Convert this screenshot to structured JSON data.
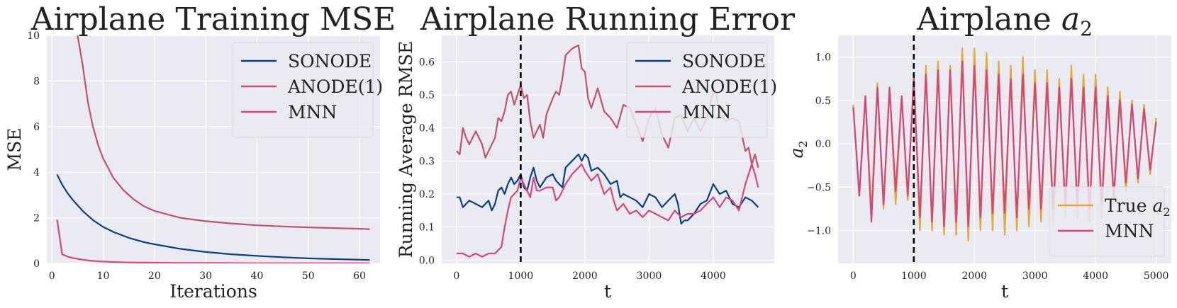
{
  "colors": {
    "background": "#eaeaf2",
    "grid": "#ffffff",
    "sonode": "#0b3f86",
    "anode": "#c3516a",
    "mnn": "#d5467a",
    "true_a2": "#e0a72e",
    "marker": "#000000"
  },
  "chart_data": [
    {
      "type": "line",
      "title": "Airplane Training MSE",
      "xlabel": "Iterations",
      "ylabel": "MSE",
      "xlim": [
        -1,
        64
      ],
      "ylim": [
        0,
        10
      ],
      "xticks": [
        0,
        10,
        20,
        30,
        40,
        50,
        60
      ],
      "yticks": [
        0,
        2,
        4,
        6,
        8,
        10
      ],
      "grid": true,
      "legend": {
        "position": "top-right",
        "entries": [
          "SONODE",
          "ANODE(1)",
          "MNN"
        ]
      },
      "series": [
        {
          "name": "SONODE",
          "x": [
            1,
            2,
            3,
            4,
            5,
            6,
            8,
            10,
            12,
            15,
            18,
            20,
            25,
            30,
            35,
            40,
            45,
            50,
            55,
            60,
            62
          ],
          "values": [
            3.9,
            3.45,
            3.1,
            2.8,
            2.55,
            2.3,
            1.9,
            1.6,
            1.38,
            1.12,
            0.93,
            0.84,
            0.64,
            0.5,
            0.4,
            0.33,
            0.27,
            0.22,
            0.19,
            0.16,
            0.15
          ]
        },
        {
          "name": "ANODE(1)",
          "x": [
            5,
            6,
            7,
            8,
            9,
            10,
            12,
            14,
            16,
            18,
            20,
            25,
            30,
            35,
            40,
            45,
            50,
            55,
            60,
            62
          ],
          "values": [
            10.0,
            8.7,
            7.1,
            6.0,
            5.2,
            4.6,
            3.75,
            3.2,
            2.8,
            2.5,
            2.3,
            2.0,
            1.85,
            1.75,
            1.67,
            1.62,
            1.58,
            1.55,
            1.52,
            1.5
          ]
        },
        {
          "name": "MNN",
          "x": [
            1,
            2,
            3,
            4,
            5,
            6,
            8,
            10,
            12,
            15,
            20,
            25,
            30,
            40,
            50,
            60,
            62
          ],
          "values": [
            1.92,
            0.4,
            0.3,
            0.24,
            0.2,
            0.16,
            0.11,
            0.08,
            0.06,
            0.04,
            0.03,
            0.02,
            0.02,
            0.01,
            0.01,
            0.01,
            0.01
          ]
        }
      ]
    },
    {
      "type": "line",
      "title": "Airplane Running Error",
      "xlabel": "t",
      "ylabel": "Running Average RMSE",
      "xlim": [
        -230,
        4950
      ],
      "ylim": [
        -0.01,
        0.68
      ],
      "xticks": [
        0,
        1000,
        2000,
        3000,
        4000
      ],
      "yticks": [
        0.0,
        0.1,
        0.2,
        0.3,
        0.4,
        0.5,
        0.6
      ],
      "grid": true,
      "vline_x": 1000,
      "legend": {
        "position": "top-right",
        "entries": [
          "SONODE",
          "ANODE(1)",
          "MNN"
        ]
      },
      "series": [
        {
          "name": "SONODE",
          "x": [
            0,
            50,
            100,
            150,
            200,
            300,
            400,
            500,
            550,
            600,
            650,
            700,
            750,
            800,
            850,
            900,
            950,
            1000,
            1050,
            1100,
            1150,
            1200,
            1250,
            1300,
            1400,
            1500,
            1550,
            1600,
            1650,
            1700,
            1800,
            1900,
            1950,
            2000,
            2050,
            2100,
            2200,
            2300,
            2400,
            2500,
            2550,
            2600,
            2700,
            2800,
            2900,
            3000,
            3100,
            3200,
            3300,
            3400,
            3450,
            3500,
            3550,
            3600,
            3700,
            3800,
            3900,
            4000,
            4100,
            4200,
            4300,
            4400,
            4500,
            4600,
            4700
          ],
          "values": [
            0.19,
            0.19,
            0.16,
            0.17,
            0.18,
            0.17,
            0.16,
            0.18,
            0.15,
            0.17,
            0.21,
            0.22,
            0.2,
            0.23,
            0.25,
            0.23,
            0.24,
            0.26,
            0.22,
            0.21,
            0.25,
            0.28,
            0.24,
            0.22,
            0.25,
            0.26,
            0.24,
            0.23,
            0.22,
            0.28,
            0.3,
            0.32,
            0.3,
            0.32,
            0.31,
            0.27,
            0.28,
            0.26,
            0.23,
            0.24,
            0.19,
            0.2,
            0.19,
            0.18,
            0.16,
            0.2,
            0.19,
            0.16,
            0.18,
            0.2,
            0.17,
            0.11,
            0.12,
            0.12,
            0.14,
            0.17,
            0.18,
            0.23,
            0.2,
            0.21,
            0.17,
            0.16,
            0.19,
            0.18,
            0.16
          ]
        },
        {
          "name": "ANODE(1)",
          "x": [
            0,
            50,
            100,
            150,
            200,
            300,
            400,
            450,
            500,
            600,
            650,
            700,
            750,
            800,
            850,
            900,
            950,
            1000,
            1050,
            1100,
            1150,
            1200,
            1300,
            1350,
            1400,
            1500,
            1550,
            1600,
            1650,
            1700,
            1750,
            1800,
            1900,
            1950,
            2000,
            2050,
            2100,
            2200,
            2300,
            2400,
            2500,
            2600,
            2700,
            2800,
            2900,
            3000,
            3100,
            3200,
            3300,
            3400,
            3500,
            3600,
            3700,
            3800,
            3900,
            4000,
            4050,
            4100,
            4200,
            4300,
            4400,
            4500,
            4550,
            4600,
            4650,
            4700
          ],
          "values": [
            0.33,
            0.32,
            0.4,
            0.37,
            0.35,
            0.39,
            0.35,
            0.31,
            0.33,
            0.37,
            0.43,
            0.42,
            0.45,
            0.5,
            0.51,
            0.47,
            0.5,
            0.53,
            0.49,
            0.5,
            0.42,
            0.37,
            0.41,
            0.37,
            0.44,
            0.49,
            0.51,
            0.5,
            0.55,
            0.62,
            0.63,
            0.64,
            0.65,
            0.58,
            0.57,
            0.49,
            0.46,
            0.52,
            0.45,
            0.43,
            0.4,
            0.47,
            0.46,
            0.41,
            0.36,
            0.43,
            0.46,
            0.38,
            0.34,
            0.43,
            0.44,
            0.39,
            0.43,
            0.39,
            0.43,
            0.51,
            0.5,
            0.44,
            0.42,
            0.43,
            0.42,
            0.33,
            0.34,
            0.29,
            0.32,
            0.28
          ]
        },
        {
          "name": "MNN",
          "x": [
            0,
            50,
            100,
            200,
            300,
            400,
            500,
            600,
            650,
            700,
            750,
            800,
            850,
            900,
            950,
            1000,
            1050,
            1100,
            1150,
            1200,
            1250,
            1300,
            1400,
            1500,
            1550,
            1600,
            1700,
            1800,
            1900,
            1950,
            2000,
            2100,
            2200,
            2300,
            2400,
            2450,
            2500,
            2600,
            2700,
            2800,
            2900,
            3000,
            3100,
            3200,
            3300,
            3400,
            3500,
            3600,
            3700,
            3800,
            3900,
            4000,
            4100,
            4200,
            4300,
            4400,
            4500,
            4550,
            4600,
            4650,
            4700
          ],
          "values": [
            0.02,
            0.02,
            0.02,
            0.01,
            0.02,
            0.01,
            0.02,
            0.02,
            0.03,
            0.04,
            0.1,
            0.15,
            0.19,
            0.2,
            0.21,
            0.25,
            0.23,
            0.21,
            0.19,
            0.25,
            0.21,
            0.21,
            0.22,
            0.22,
            0.18,
            0.19,
            0.23,
            0.26,
            0.28,
            0.29,
            0.27,
            0.24,
            0.26,
            0.2,
            0.22,
            0.18,
            0.15,
            0.17,
            0.14,
            0.15,
            0.13,
            0.15,
            0.14,
            0.13,
            0.12,
            0.15,
            0.13,
            0.14,
            0.14,
            0.15,
            0.17,
            0.19,
            0.16,
            0.19,
            0.18,
            0.15,
            0.23,
            0.26,
            0.29,
            0.26,
            0.22
          ]
        }
      ]
    },
    {
      "type": "line",
      "title": "Airplane a2",
      "xlabel": "t",
      "ylabel": "a2",
      "xlim": [
        -250,
        5250
      ],
      "ylim": [
        -1.38,
        1.25
      ],
      "xticks": [
        0,
        1000,
        2000,
        3000,
        4000,
        5000
      ],
      "yticks": [
        -1.0,
        -0.5,
        0.0,
        0.5,
        1.0
      ],
      "grid": true,
      "vline_x": 1000,
      "legend": {
        "position": "bottom-right",
        "entries": [
          "True a2",
          "MNN"
        ]
      },
      "series": [
        {
          "name": "True a2",
          "x": [
            0,
            100,
            200,
            300,
            400,
            500,
            600,
            700,
            800,
            900,
            1000,
            1100,
            1200,
            1300,
            1400,
            1500,
            1600,
            1700,
            1800,
            1900,
            2000,
            2100,
            2200,
            2300,
            2400,
            2500,
            2600,
            2700,
            2800,
            2900,
            3000,
            3100,
            3200,
            3300,
            3400,
            3500,
            3600,
            3700,
            3800,
            3900,
            4000,
            4100,
            4200,
            4300,
            4400,
            4500,
            4600,
            4700,
            4800,
            4900,
            5000
          ],
          "values": [
            0.45,
            0.6,
            0.55,
            0.8,
            0.7,
            0.75,
            0.65,
            0.7,
            0.55,
            0.65,
            0.8,
            1.0,
            0.9,
            1.0,
            0.95,
            1.05,
            0.9,
            1.05,
            1.1,
            1.12,
            1.1,
            1.0,
            1.05,
            1.0,
            0.95,
            1.05,
            0.9,
            1.0,
            1.0,
            0.95,
            0.85,
            0.9,
            0.85,
            0.95,
            0.75,
            0.85,
            0.9,
            0.85,
            0.8,
            0.9,
            0.8,
            0.85,
            0.65,
            0.7,
            0.6,
            0.55,
            0.5,
            0.45,
            0.45,
            0.35,
            0.3
          ]
        },
        {
          "name": "MNN",
          "x": [
            0,
            100,
            200,
            300,
            400,
            500,
            600,
            700,
            800,
            900,
            1000,
            1100,
            1200,
            1300,
            1400,
            1500,
            1600,
            1700,
            1800,
            1900,
            2000,
            2100,
            2200,
            2300,
            2400,
            2500,
            2600,
            2700,
            2800,
            2900,
            3000,
            3100,
            3200,
            3300,
            3400,
            3500,
            3600,
            3700,
            3800,
            3900,
            4000,
            4100,
            4200,
            4300,
            4400,
            4500,
            4600,
            4700,
            4800,
            4900,
            5000
          ],
          "values": [
            0.42,
            0.6,
            0.55,
            0.9,
            0.65,
            0.7,
            0.65,
            0.55,
            0.55,
            0.6,
            0.75,
            0.85,
            0.8,
            0.9,
            0.85,
            0.95,
            0.85,
            0.9,
            0.95,
            0.95,
            0.9,
            0.85,
            0.85,
            0.8,
            0.8,
            0.8,
            0.75,
            0.85,
            0.8,
            0.75,
            0.7,
            0.75,
            0.7,
            0.75,
            0.65,
            0.7,
            0.75,
            0.7,
            0.65,
            0.75,
            0.65,
            0.7,
            0.55,
            0.6,
            0.5,
            0.45,
            0.45,
            0.4,
            0.4,
            0.3,
            0.25
          ]
        }
      ]
    }
  ]
}
